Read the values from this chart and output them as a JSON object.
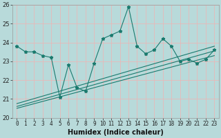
{
  "xlabel": "Humidex (Indice chaleur)",
  "ylabel": "",
  "bg_color": "#b8dada",
  "grid_color": "#e8b8b8",
  "line_color": "#1a7a6e",
  "x_values": [
    0,
    1,
    2,
    3,
    4,
    5,
    6,
    7,
    8,
    9,
    10,
    11,
    12,
    13,
    14,
    15,
    16,
    17,
    18,
    19,
    20,
    21,
    22,
    23
  ],
  "y_main": [
    23.8,
    23.5,
    23.5,
    23.3,
    23.2,
    21.1,
    22.8,
    21.6,
    21.4,
    22.9,
    24.2,
    24.4,
    24.6,
    25.9,
    23.8,
    23.4,
    23.6,
    24.2,
    23.8,
    23.0,
    23.1,
    22.9,
    23.1,
    23.6
  ],
  "trend1_x": [
    0,
    23
  ],
  "trend1_y": [
    20.5,
    23.3
  ],
  "trend2_x": [
    0,
    23
  ],
  "trend2_y": [
    20.6,
    23.55
  ],
  "trend3_x": [
    0,
    23
  ],
  "trend3_y": [
    20.75,
    23.8
  ],
  "ylim": [
    20,
    26
  ],
  "xlim": [
    -0.5,
    23.5
  ],
  "yticks": [
    20,
    21,
    22,
    23,
    24,
    25,
    26
  ],
  "xticks": [
    0,
    1,
    2,
    3,
    4,
    5,
    6,
    7,
    8,
    9,
    10,
    11,
    12,
    13,
    14,
    15,
    16,
    17,
    18,
    19,
    20,
    21,
    22,
    23
  ],
  "xlabel_fontsize": 7,
  "tick_fontsize": 5.5,
  "ytick_fontsize": 6
}
